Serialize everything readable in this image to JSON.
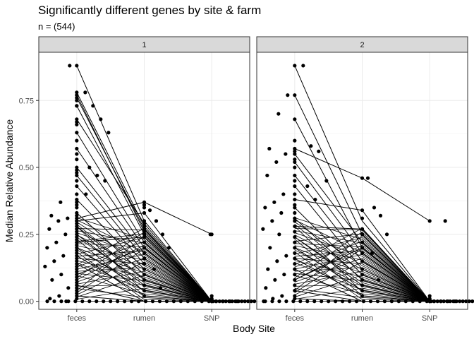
{
  "chart_data": {
    "type": "scatter",
    "title": "Significantly different genes by site & farm",
    "subtitle": "n = (544)",
    "xlabel": "Body Site",
    "ylabel": "Median Relative Abundance",
    "categories": [
      "feces",
      "rumen",
      "SNP"
    ],
    "y_ticks": [
      0.0,
      0.25,
      0.5,
      0.75
    ],
    "y_tick_labels": [
      "0.00",
      "0.25",
      "0.50",
      "0.75"
    ],
    "ylim": [
      -0.03,
      0.93
    ],
    "grid": true,
    "legend": "none",
    "panels": [
      {
        "label": "1",
        "feces_values": [
          0.88,
          0.78,
          0.77,
          0.76,
          0.75,
          0.73,
          0.73,
          0.68,
          0.67,
          0.66,
          0.63,
          0.6,
          0.57,
          0.55,
          0.53,
          0.5,
          0.49,
          0.48,
          0.47,
          0.45,
          0.43,
          0.4,
          0.38,
          0.37,
          0.36,
          0.35,
          0.33,
          0.32,
          0.31,
          0.3,
          0.3,
          0.29,
          0.28,
          0.27,
          0.26,
          0.25,
          0.24,
          0.23,
          0.22,
          0.21,
          0.2,
          0.19,
          0.18,
          0.17,
          0.16,
          0.15,
          0.14,
          0.13,
          0.12,
          0.11,
          0.1,
          0.09,
          0.08,
          0.07,
          0.06,
          0.05,
          0.04,
          0.03,
          0.02,
          0.01
        ],
        "rumen_values": [
          0.37,
          0.36,
          0.35,
          0.33,
          0.3,
          0.29,
          0.28,
          0.27,
          0.26,
          0.25,
          0.24,
          0.22,
          0.2,
          0.18,
          0.16,
          0.14,
          0.12,
          0.1,
          0.08,
          0.06,
          0.04,
          0.02
        ],
        "snp_values": [
          0.25,
          0.02,
          0.01,
          0.0,
          0.0,
          0.0
        ],
        "lines": [
          {
            "feces": 0.88,
            "rumen": 0.3,
            "snp": 0.0
          },
          {
            "feces": 0.78,
            "rumen": 0.28,
            "snp": 0.0
          },
          {
            "feces": 0.77,
            "rumen": 0.26,
            "snp": 0.0
          },
          {
            "feces": 0.76,
            "rumen": 0.27,
            "snp": 0.0
          },
          {
            "feces": 0.73,
            "rumen": 0.25,
            "snp": 0.0
          },
          {
            "feces": 0.68,
            "rumen": 0.29,
            "snp": 0.0
          },
          {
            "feces": 0.63,
            "rumen": 0.22,
            "snp": 0.0
          },
          {
            "feces": 0.57,
            "rumen": 0.2,
            "snp": 0.0
          },
          {
            "feces": 0.5,
            "rumen": 0.18,
            "snp": 0.0
          },
          {
            "feces": 0.47,
            "rumen": 0.16,
            "snp": 0.0
          },
          {
            "feces": 0.43,
            "rumen": 0.14,
            "snp": 0.0
          },
          {
            "feces": 0.38,
            "rumen": 0.12,
            "snp": 0.0
          },
          {
            "feces": 0.33,
            "rumen": 0.1,
            "snp": 0.0
          },
          {
            "feces": 0.31,
            "rumen": 0.37,
            "snp": 0.25
          },
          {
            "feces": 0.3,
            "rumen": 0.33,
            "snp": 0.0
          },
          {
            "feces": 0.28,
            "rumen": 0.08,
            "snp": 0.0
          },
          {
            "feces": 0.25,
            "rumen": 0.06,
            "snp": 0.0
          },
          {
            "feces": 0.22,
            "rumen": 0.24,
            "snp": 0.0
          },
          {
            "feces": 0.2,
            "rumen": 0.04,
            "snp": 0.0
          },
          {
            "feces": 0.17,
            "rumen": 0.02,
            "snp": 0.0
          },
          {
            "feces": 0.14,
            "rumen": 0.0,
            "snp": 0.0
          },
          {
            "feces": 0.1,
            "rumen": 0.2,
            "snp": 0.0
          },
          {
            "feces": 0.06,
            "rumen": 0.0,
            "snp": 0.0
          },
          {
            "feces": 0.02,
            "rumen": 0.0,
            "snp": 0.0
          }
        ],
        "outliers_left": [
          0.88,
          0.37,
          0.32,
          0.31,
          0.3,
          0.27,
          0.25,
          0.22,
          0.2,
          0.17,
          0.15,
          0.13,
          0.1,
          0.08,
          0.05,
          0.02,
          0.01,
          0.0
        ],
        "outliers_right": [
          0.78,
          0.73,
          0.68,
          0.63,
          0.5,
          0.47,
          0.45,
          0.4
        ],
        "rumen_right": [
          0.34,
          0.3,
          0.25,
          0.2,
          0.12,
          0.05
        ],
        "snp_left": [
          0.25
        ]
      },
      {
        "label": "2",
        "feces_values": [
          0.88,
          0.77,
          0.68,
          0.6,
          0.57,
          0.56,
          0.55,
          0.53,
          0.52,
          0.5,
          0.47,
          0.45,
          0.43,
          0.4,
          0.38,
          0.36,
          0.35,
          0.33,
          0.31,
          0.3,
          0.28,
          0.26,
          0.24,
          0.22,
          0.2,
          0.18,
          0.16,
          0.14,
          0.12,
          0.1,
          0.08,
          0.06,
          0.04,
          0.02,
          0.01
        ],
        "rumen_values": [
          0.46,
          0.34,
          0.31,
          0.27,
          0.25,
          0.22,
          0.2,
          0.18,
          0.15,
          0.12,
          0.1,
          0.08,
          0.06,
          0.04,
          0.02
        ],
        "snp_values": [
          0.3,
          0.02,
          0.01,
          0.0,
          0.0,
          0.0
        ],
        "lines": [
          {
            "feces": 0.88,
            "rumen": 0.3,
            "snp": 0.0
          },
          {
            "feces": 0.77,
            "rumen": 0.25,
            "snp": 0.0
          },
          {
            "feces": 0.68,
            "rumen": 0.2,
            "snp": 0.0
          },
          {
            "feces": 0.57,
            "rumen": 0.46,
            "snp": 0.3
          },
          {
            "feces": 0.55,
            "rumen": 0.22,
            "snp": 0.0
          },
          {
            "feces": 0.52,
            "rumen": 0.18,
            "snp": 0.0
          },
          {
            "feces": 0.47,
            "rumen": 0.15,
            "snp": 0.0
          },
          {
            "feces": 0.43,
            "rumen": 0.12,
            "snp": 0.0
          },
          {
            "feces": 0.38,
            "rumen": 0.34,
            "snp": 0.0
          },
          {
            "feces": 0.35,
            "rumen": 0.1,
            "snp": 0.0
          },
          {
            "feces": 0.31,
            "rumen": 0.08,
            "snp": 0.0
          },
          {
            "feces": 0.28,
            "rumen": 0.27,
            "snp": 0.0
          },
          {
            "feces": 0.24,
            "rumen": 0.06,
            "snp": 0.0
          },
          {
            "feces": 0.2,
            "rumen": 0.04,
            "snp": 0.0
          },
          {
            "feces": 0.16,
            "rumen": 0.02,
            "snp": 0.0
          },
          {
            "feces": 0.12,
            "rumen": 0.0,
            "snp": 0.0
          },
          {
            "feces": 0.08,
            "rumen": 0.2,
            "snp": 0.0
          },
          {
            "feces": 0.04,
            "rumen": 0.0,
            "snp": 0.0
          },
          {
            "feces": 0.01,
            "rumen": 0.0,
            "snp": 0.0
          }
        ],
        "outliers_left": [
          0.77,
          0.7,
          0.57,
          0.55,
          0.52,
          0.47,
          0.4,
          0.37,
          0.35,
          0.33,
          0.3,
          0.27,
          0.25,
          0.2,
          0.17,
          0.15,
          0.12,
          0.1,
          0.08,
          0.05,
          0.02,
          0.01,
          0.0
        ],
        "outliers_right": [
          0.88,
          0.58,
          0.56,
          0.45,
          0.43,
          0.38
        ],
        "rumen_right": [
          0.46,
          0.35,
          0.32,
          0.25,
          0.18,
          0.08
        ],
        "snp_right": [
          0.3
        ]
      }
    ]
  }
}
